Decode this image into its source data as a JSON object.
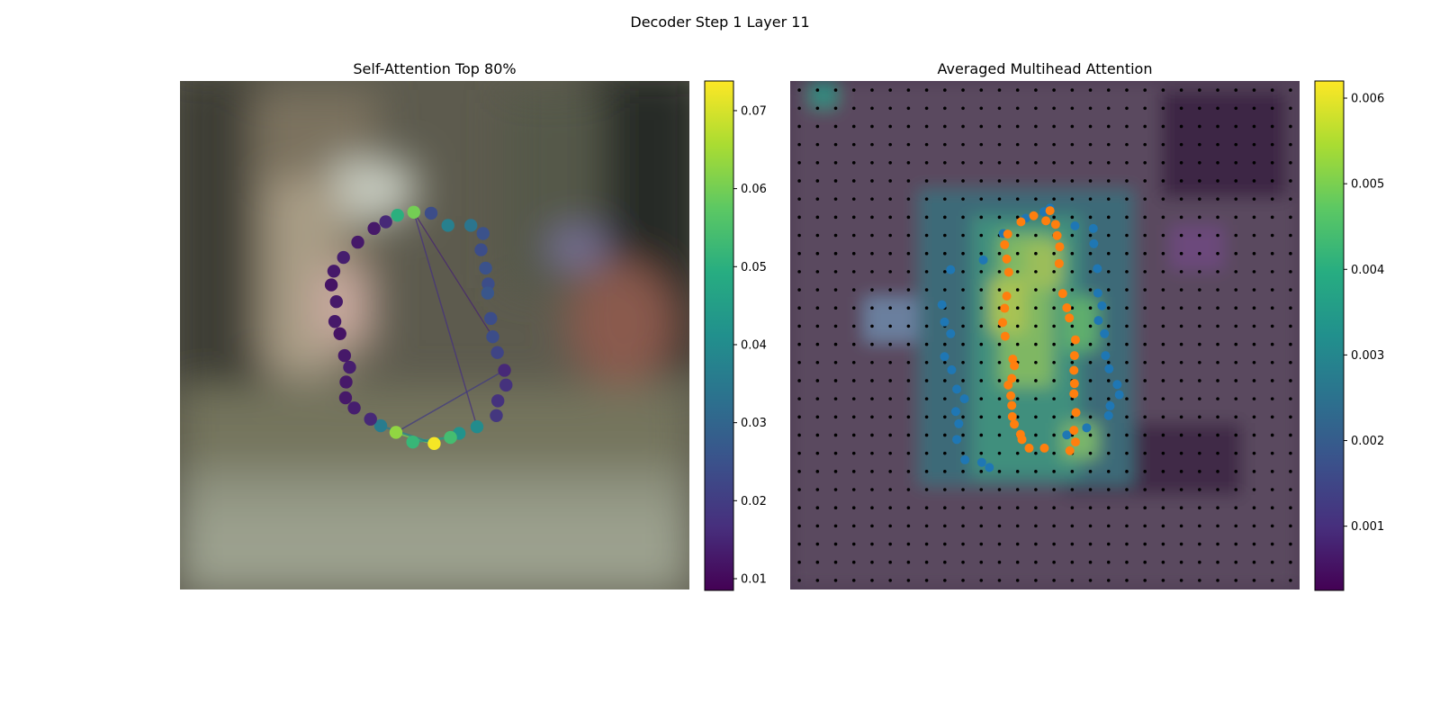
{
  "figure": {
    "suptitle": "Decoder Step 1 Layer 11"
  },
  "chart_data": [
    {
      "type": "scatter",
      "title": "Self-Attention Top 80%",
      "xlim": [
        0,
        1
      ],
      "ylim": [
        0,
        1
      ],
      "axes_visible": false,
      "background": "blurred street photo",
      "colormap": "viridis",
      "colorbar": {
        "range": [
          0.0085,
          0.0738
        ],
        "ticks": [
          0.01,
          0.02,
          0.03,
          0.04,
          0.05,
          0.06,
          0.07
        ],
        "tick_labels": [
          "0.01",
          "0.02",
          "0.03",
          "0.04",
          "0.05",
          "0.06",
          "0.07"
        ]
      },
      "series": [
        {
          "points": [
            [
              0.459,
              0.742,
              0.06
            ],
            [
              0.493,
              0.74,
              0.024
            ],
            [
              0.526,
              0.716,
              0.037
            ],
            [
              0.571,
              0.716,
              0.034
            ],
            [
              0.595,
              0.7,
              0.025
            ],
            [
              0.591,
              0.668,
              0.024
            ],
            [
              0.6,
              0.632,
              0.025
            ],
            [
              0.605,
              0.601,
              0.024
            ],
            [
              0.604,
              0.583,
              0.026
            ],
            [
              0.61,
              0.533,
              0.024
            ],
            [
              0.614,
              0.497,
              0.024
            ],
            [
              0.623,
              0.466,
              0.022
            ],
            [
              0.637,
              0.431,
              0.016
            ],
            [
              0.64,
              0.402,
              0.018
            ],
            [
              0.624,
              0.371,
              0.018
            ],
            [
              0.621,
              0.342,
              0.019
            ],
            [
              0.583,
              0.32,
              0.04
            ],
            [
              0.548,
              0.307,
              0.042
            ],
            [
              0.531,
              0.299,
              0.054
            ],
            [
              0.499,
              0.287,
              0.073
            ],
            [
              0.457,
              0.29,
              0.052
            ],
            [
              0.424,
              0.309,
              0.063
            ],
            [
              0.394,
              0.322,
              0.036
            ],
            [
              0.374,
              0.335,
              0.016
            ],
            [
              0.342,
              0.357,
              0.014
            ],
            [
              0.325,
              0.377,
              0.013
            ],
            [
              0.326,
              0.408,
              0.013
            ],
            [
              0.333,
              0.437,
              0.014
            ],
            [
              0.323,
              0.46,
              0.013
            ],
            [
              0.314,
              0.503,
              0.012
            ],
            [
              0.304,
              0.527,
              0.013
            ],
            [
              0.307,
              0.566,
              0.013
            ],
            [
              0.297,
              0.599,
              0.012
            ],
            [
              0.302,
              0.626,
              0.013
            ],
            [
              0.321,
              0.653,
              0.014
            ],
            [
              0.349,
              0.683,
              0.013
            ],
            [
              0.381,
              0.71,
              0.013
            ],
            [
              0.404,
              0.723,
              0.016
            ],
            [
              0.427,
              0.736,
              0.05
            ]
          ],
          "connections": [
            [
              0.459,
              0.742,
              0.583,
              0.32,
              0.018
            ],
            [
              0.459,
              0.742,
              0.614,
              0.497,
              0.015
            ],
            [
              0.637,
              0.431,
              0.424,
              0.309,
              0.02
            ],
            [
              0.424,
              0.309,
              0.499,
              0.287,
              0.06
            ],
            [
              0.457,
              0.29,
              0.531,
              0.299,
              0.045
            ],
            [
              0.394,
              0.322,
              0.499,
              0.287,
              0.035
            ]
          ]
        }
      ]
    },
    {
      "type": "heatmap",
      "title": "Averaged Multihead Attention",
      "axes_visible": false,
      "grid_size": 28,
      "colormap": "viridis",
      "colorbar": {
        "range": [
          0.00025,
          0.0062
        ],
        "ticks": [
          0.001,
          0.002,
          0.003,
          0.004,
          0.005,
          0.006
        ],
        "tick_labels": [
          "0.001",
          "0.002",
          "0.003",
          "0.004",
          "0.005",
          "0.006"
        ]
      },
      "series": [
        {
          "color": "#1f77b4",
          "points": [
            [
              0.498,
              0.743
            ],
            [
              0.462,
              0.73
            ],
            [
              0.418,
              0.7
            ],
            [
              0.379,
              0.648
            ],
            [
              0.315,
              0.629
            ],
            [
              0.298,
              0.56
            ],
            [
              0.303,
              0.526
            ],
            [
              0.315,
              0.503
            ],
            [
              0.303,
              0.458
            ],
            [
              0.317,
              0.432
            ],
            [
              0.327,
              0.394
            ],
            [
              0.342,
              0.375
            ],
            [
              0.325,
              0.35
            ],
            [
              0.331,
              0.326
            ],
            [
              0.327,
              0.295
            ],
            [
              0.343,
              0.255
            ],
            [
              0.376,
              0.25
            ],
            [
              0.391,
              0.24
            ],
            [
              0.51,
              0.75
            ],
            [
              0.559,
              0.715
            ],
            [
              0.595,
              0.71
            ],
            [
              0.596,
              0.68
            ],
            [
              0.603,
              0.631
            ],
            [
              0.604,
              0.583
            ],
            [
              0.612,
              0.558
            ],
            [
              0.605,
              0.529
            ],
            [
              0.617,
              0.503
            ],
            [
              0.619,
              0.46
            ],
            [
              0.626,
              0.434
            ],
            [
              0.642,
              0.403
            ],
            [
              0.646,
              0.383
            ],
            [
              0.628,
              0.361
            ],
            [
              0.625,
              0.342
            ],
            [
              0.582,
              0.318
            ],
            [
              0.543,
              0.304
            ]
          ]
        },
        {
          "color": "#ff7f0e",
          "points": [
            [
              0.478,
              0.735
            ],
            [
              0.453,
              0.723
            ],
            [
              0.427,
              0.699
            ],
            [
              0.421,
              0.678
            ],
            [
              0.425,
              0.65
            ],
            [
              0.429,
              0.624
            ],
            [
              0.425,
              0.577
            ],
            [
              0.421,
              0.553
            ],
            [
              0.417,
              0.525
            ],
            [
              0.422,
              0.498
            ],
            [
              0.437,
              0.453
            ],
            [
              0.44,
              0.44
            ],
            [
              0.435,
              0.415
            ],
            [
              0.428,
              0.402
            ],
            [
              0.433,
              0.381
            ],
            [
              0.435,
              0.362
            ],
            [
              0.436,
              0.34
            ],
            [
              0.44,
              0.325
            ],
            [
              0.452,
              0.305
            ],
            [
              0.455,
              0.295
            ],
            [
              0.469,
              0.278
            ],
            [
              0.499,
              0.278
            ],
            [
              0.51,
              0.745
            ],
            [
              0.502,
              0.725
            ],
            [
              0.521,
              0.718
            ],
            [
              0.524,
              0.696
            ],
            [
              0.529,
              0.674
            ],
            [
              0.528,
              0.641
            ],
            [
              0.535,
              0.582
            ],
            [
              0.543,
              0.554
            ],
            [
              0.548,
              0.534
            ],
            [
              0.56,
              0.491
            ],
            [
              0.558,
              0.46
            ],
            [
              0.557,
              0.431
            ],
            [
              0.558,
              0.405
            ],
            [
              0.557,
              0.385
            ],
            [
              0.561,
              0.348
            ],
            [
              0.557,
              0.313
            ],
            [
              0.56,
              0.29
            ],
            [
              0.549,
              0.273
            ]
          ]
        }
      ]
    }
  ]
}
